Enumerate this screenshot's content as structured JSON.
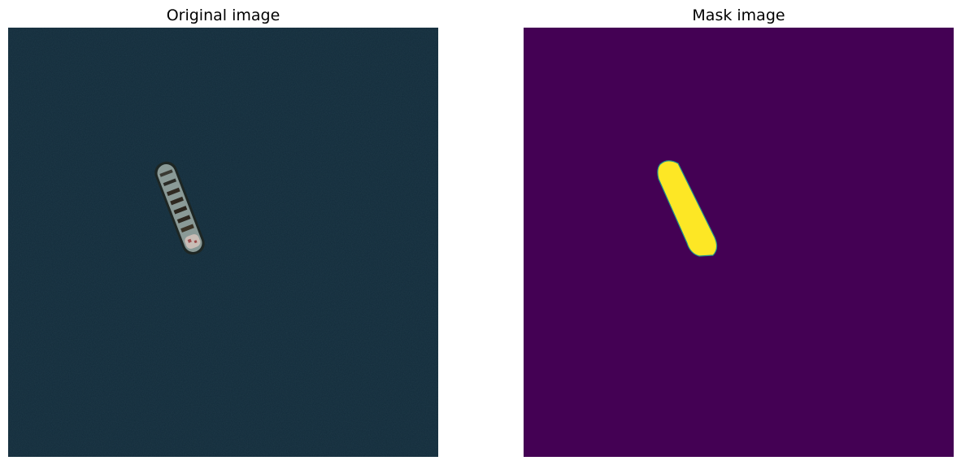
{
  "panels": {
    "original": {
      "title": "Original image"
    },
    "mask": {
      "title": "Mask image"
    }
  },
  "colors": {
    "sea": "#122b3a",
    "ship_hull": "#8a9a97",
    "ship_deck": "#b9c2bd",
    "mask_background": "#440154",
    "mask_foreground": "#fde725",
    "mask_edge": "#21918c"
  }
}
